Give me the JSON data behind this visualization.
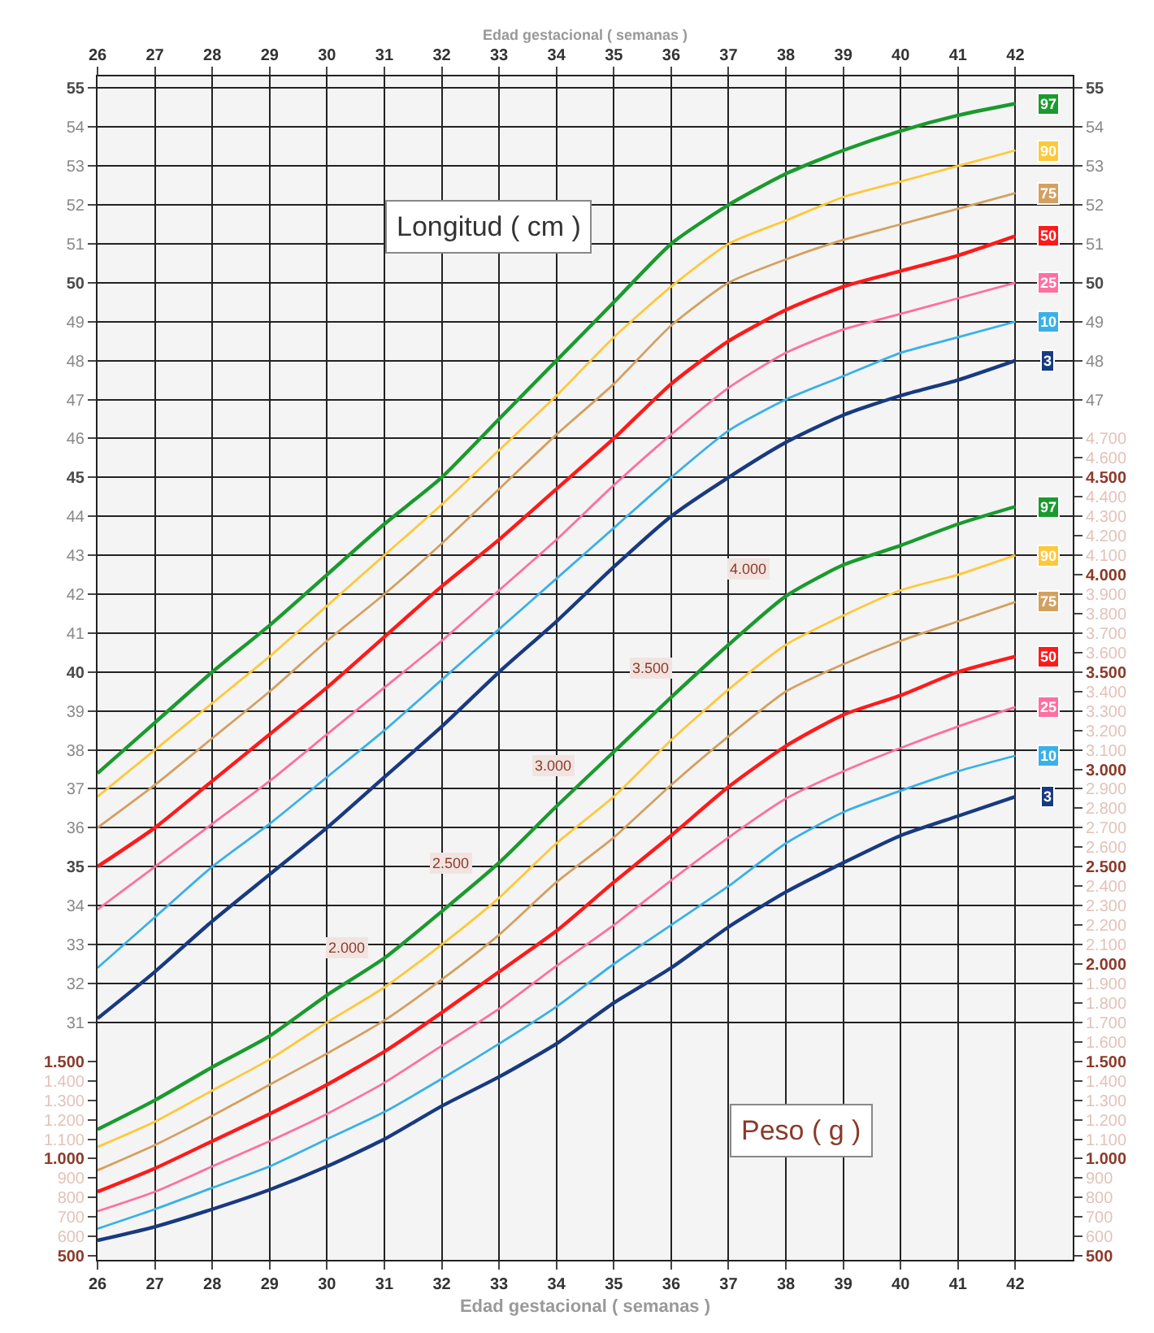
{
  "chart_data": {
    "type": "line",
    "xlabel": "Edad gestacional ( semanas )",
    "x2label": "Edad gestacional ( semanas )",
    "x": [
      26,
      27,
      28,
      29,
      30,
      31,
      32,
      33,
      34,
      35,
      36,
      37,
      38,
      39,
      40,
      41,
      42
    ],
    "xlim": [
      26,
      43
    ],
    "xticks": [
      26,
      27,
      28,
      29,
      30,
      31,
      32,
      33,
      34,
      35,
      36,
      37,
      38,
      39,
      40,
      41,
      42
    ],
    "x2lim": [
      26,
      43
    ],
    "x2ticks": [
      26,
      27,
      28,
      29,
      30,
      31,
      32,
      33,
      34,
      35,
      36,
      37,
      38,
      39,
      40,
      41,
      42
    ],
    "y3lim": [
      24.9,
      55.3
    ],
    "y3ticks": [
      47,
      48,
      49,
      50,
      51,
      52,
      53,
      54,
      55
    ],
    "ylim": [
      24.9,
      55.3
    ],
    "yticks": [
      31,
      32,
      33,
      34,
      35,
      36,
      37,
      38,
      39,
      40,
      41,
      42,
      43,
      44,
      45,
      46,
      47,
      48,
      49,
      50,
      51,
      52,
      53,
      54,
      55
    ],
    "y2lim": [
      480,
      6560
    ],
    "y2ticks": [
      {
        "value": 500,
        "label": "500"
      },
      {
        "value": 600,
        "label": "600"
      },
      {
        "value": 700,
        "label": "700"
      },
      {
        "value": 800,
        "label": "800"
      },
      {
        "value": 900,
        "label": "900"
      },
      {
        "value": 1000,
        "label": "1.000"
      },
      {
        "value": 1100,
        "label": "1.100"
      },
      {
        "value": 1200,
        "label": "1.200"
      },
      {
        "value": 1300,
        "label": "1.300"
      },
      {
        "value": 1400,
        "label": "1.400"
      },
      {
        "value": 1500,
        "label": "1.500"
      },
      {
        "value": 1600,
        "label": "1.600"
      },
      {
        "value": 1700,
        "label": "1.700"
      },
      {
        "value": 1800,
        "label": "1.800"
      },
      {
        "value": 1900,
        "label": "1.900"
      },
      {
        "value": 2000,
        "label": "2.000"
      },
      {
        "value": 2100,
        "label": "2.100"
      },
      {
        "value": 2200,
        "label": "2.200"
      },
      {
        "value": 2300,
        "label": "2.300"
      },
      {
        "value": 2400,
        "label": "2.400"
      },
      {
        "value": 2500,
        "label": "2.500"
      },
      {
        "value": 2600,
        "label": "2.600"
      },
      {
        "value": 2700,
        "label": "2.700"
      },
      {
        "value": 2800,
        "label": "2.800"
      },
      {
        "value": 2900,
        "label": "2.900"
      },
      {
        "value": 3000,
        "label": "3.000"
      },
      {
        "value": 3100,
        "label": "3.100"
      },
      {
        "value": 3200,
        "label": "3.200"
      },
      {
        "value": 3300,
        "label": "3.300"
      },
      {
        "value": 3400,
        "label": "3.400"
      },
      {
        "value": 3500,
        "label": "3.500"
      },
      {
        "value": 3600,
        "label": "3.600"
      },
      {
        "value": 3700,
        "label": "3.700"
      },
      {
        "value": 3800,
        "label": "3.800"
      },
      {
        "value": 3900,
        "label": "3.900"
      },
      {
        "value": 4000,
        "label": "4.000"
      },
      {
        "value": 4100,
        "label": "4.100"
      },
      {
        "value": 4200,
        "label": "4.200"
      },
      {
        "value": 4300,
        "label": "4.300"
      },
      {
        "value": 4400,
        "label": "4.400"
      },
      {
        "value": 4500,
        "label": "4.500"
      },
      {
        "value": 4600,
        "label": "4.600"
      },
      {
        "value": 4700,
        "label": "4.700"
      }
    ],
    "grid": true,
    "legend": "right",
    "marker": "none",
    "line_style": "solid",
    "series": [
      {
        "name": "97",
        "color": "#1a9a2e",
        "values": [
          37.4,
          38.7,
          40.0,
          41.2,
          42.5,
          43.8,
          45.0,
          46.5,
          48.0,
          49.5,
          51.0,
          52.0,
          52.8,
          53.4,
          53.9,
          54.3,
          54.6
        ]
      },
      {
        "name": "90",
        "color": "#ffc83a",
        "values": [
          36.8,
          38.0,
          39.2,
          40.4,
          41.7,
          43.0,
          44.3,
          45.7,
          47.1,
          48.6,
          49.9,
          51.0,
          51.6,
          52.2,
          52.6,
          53.0,
          53.4
        ]
      },
      {
        "name": "75",
        "color": "#d4a060",
        "values": [
          36.0,
          37.1,
          38.3,
          39.5,
          40.8,
          42.0,
          43.3,
          44.7,
          46.1,
          47.4,
          48.9,
          50.0,
          50.6,
          51.1,
          51.5,
          51.9,
          52.3
        ]
      },
      {
        "name": "50",
        "color": "#ff1a1a",
        "values": [
          35.0,
          36.0,
          37.2,
          38.4,
          39.6,
          40.9,
          42.2,
          43.4,
          44.7,
          46.0,
          47.4,
          48.5,
          49.3,
          49.9,
          50.3,
          50.7,
          51.2
        ]
      },
      {
        "name": "25",
        "color": "#ff6fa0",
        "values": [
          33.9,
          35.0,
          36.1,
          37.2,
          38.4,
          39.6,
          40.8,
          42.1,
          43.4,
          44.8,
          46.1,
          47.3,
          48.2,
          48.8,
          49.2,
          49.6,
          50.0
        ]
      },
      {
        "name": "10",
        "color": "#3ab0e8",
        "values": [
          32.4,
          33.7,
          35.0,
          36.1,
          37.3,
          38.5,
          39.8,
          41.1,
          42.4,
          43.7,
          45.0,
          46.2,
          47.0,
          47.6,
          48.2,
          48.6,
          49.0
        ]
      },
      {
        "name": "3",
        "color": "#183a80",
        "values": [
          31.1,
          32.3,
          33.6,
          34.8,
          36.0,
          37.3,
          38.6,
          40.0,
          41.3,
          42.7,
          44.0,
          45.0,
          45.9,
          46.6,
          47.1,
          47.5,
          48.0
        ]
      },
      {
        "name": "97",
        "color": "#1a9a2e",
        "axis": "y2",
        "values": [
          1150,
          1300,
          1470,
          1630,
          1840,
          2030,
          2270,
          2520,
          2810,
          3090,
          3370,
          3640,
          3890,
          4050,
          4150,
          4260,
          4350
        ]
      },
      {
        "name": "90",
        "color": "#ffc83a",
        "axis": "y2",
        "values": [
          1060,
          1190,
          1350,
          1510,
          1700,
          1880,
          2100,
          2340,
          2620,
          2860,
          3150,
          3410,
          3640,
          3790,
          3920,
          4000,
          4100
        ]
      },
      {
        "name": "75",
        "color": "#d4a060",
        "axis": "y2",
        "values": [
          940,
          1070,
          1220,
          1380,
          1540,
          1710,
          1920,
          2150,
          2420,
          2650,
          2920,
          3170,
          3400,
          3540,
          3660,
          3760,
          3860
        ]
      },
      {
        "name": "50",
        "color": "#ff1a1a",
        "axis": "y2",
        "values": [
          830,
          950,
          1090,
          1230,
          1380,
          1550,
          1750,
          1960,
          2170,
          2420,
          2660,
          2910,
          3120,
          3280,
          3380,
          3500,
          3580
        ]
      },
      {
        "name": "25",
        "color": "#ff6fa0",
        "axis": "y2",
        "values": [
          730,
          830,
          960,
          1090,
          1230,
          1390,
          1580,
          1770,
          1990,
          2200,
          2430,
          2650,
          2850,
          2990,
          3110,
          3220,
          3320
        ]
      },
      {
        "name": "10",
        "color": "#3ab0e8",
        "axis": "y2",
        "values": [
          640,
          740,
          850,
          960,
          1100,
          1240,
          1410,
          1590,
          1780,
          2000,
          2200,
          2400,
          2620,
          2780,
          2890,
          2990,
          3070
        ]
      },
      {
        "name": "3",
        "color": "#183a80",
        "axis": "y2",
        "values": [
          580,
          650,
          740,
          840,
          960,
          1100,
          1270,
          1420,
          1590,
          1800,
          1980,
          2190,
          2370,
          2520,
          2660,
          2760,
          2860
        ]
      }
    ],
    "annotations": [
      "Longitud ( cm )",
      "Peso ( g )",
      "2.000",
      "2.500",
      "3.000",
      "3.500",
      "4.000"
    ]
  }
}
